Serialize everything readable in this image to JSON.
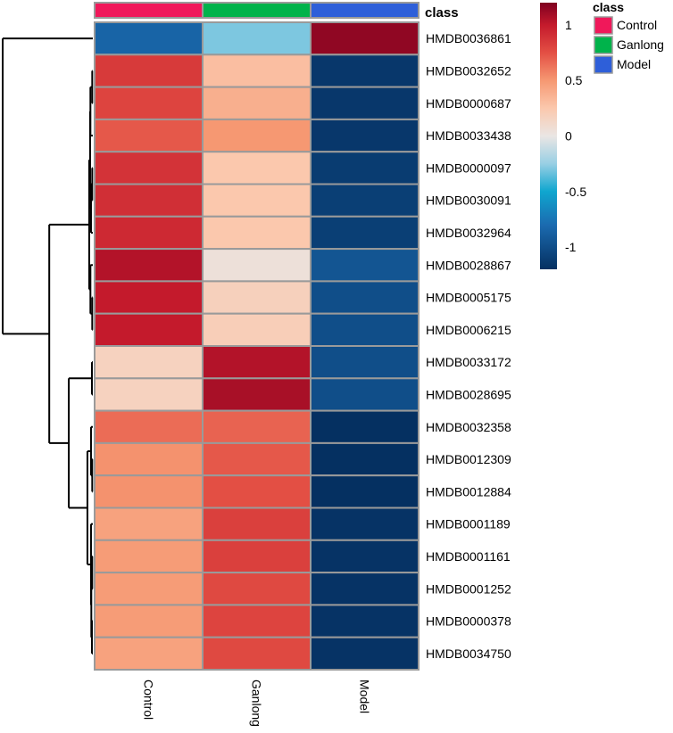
{
  "chart_data": {
    "type": "heatmap",
    "title": "",
    "columns": [
      "Control",
      "Ganlong",
      "Model"
    ],
    "rows": [
      "HMDB0036861",
      "HMDB0032652",
      "HMDB0000687",
      "HMDB0033438",
      "HMDB0000097",
      "HMDB0030091",
      "HMDB0032964",
      "HMDB0028867",
      "HMDB0005175",
      "HMDB0006215",
      "HMDB0033172",
      "HMDB0028695",
      "HMDB0032358",
      "HMDB0012309",
      "HMDB0012884",
      "HMDB0001189",
      "HMDB0001161",
      "HMDB0001252",
      "HMDB0000378",
      "HMDB0034750"
    ],
    "values": [
      [
        -0.85,
        -0.3,
        1.15
      ],
      [
        0.85,
        0.3,
        -1.15
      ],
      [
        0.8,
        0.38,
        -1.15
      ],
      [
        0.72,
        0.5,
        -1.15
      ],
      [
        0.88,
        0.25,
        -1.12
      ],
      [
        0.9,
        0.25,
        -1.1
      ],
      [
        0.93,
        0.25,
        -1.1
      ],
      [
        1.05,
        0.05,
        -0.95
      ],
      [
        1.0,
        0.18,
        -1.0
      ],
      [
        1.0,
        0.2,
        -1.0
      ],
      [
        0.17,
        1.05,
        -1.0
      ],
      [
        0.17,
        1.08,
        -1.0
      ],
      [
        0.65,
        0.68,
        -1.2
      ],
      [
        0.52,
        0.72,
        -1.2
      ],
      [
        0.52,
        0.75,
        -1.2
      ],
      [
        0.45,
        0.82,
        -1.18
      ],
      [
        0.48,
        0.82,
        -1.18
      ],
      [
        0.48,
        0.78,
        -1.18
      ],
      [
        0.48,
        0.8,
        -1.18
      ],
      [
        0.45,
        0.78,
        -1.18
      ]
    ],
    "column_class": [
      "Control",
      "Ganlong",
      "Model"
    ],
    "class_track_label": "class",
    "colorbar": {
      "min": -1.2,
      "max": 1.2,
      "ticks": [
        1,
        0.5,
        0,
        -0.5,
        -1
      ],
      "tick_labels": [
        "1",
        "0.5",
        "0",
        "-0.5",
        "-1"
      ],
      "stops": [
        {
          "value": -1.2,
          "color": "#053061"
        },
        {
          "value": -0.8,
          "color": "#1b6bb0"
        },
        {
          "value": -0.5,
          "color": "#0fa6cf"
        },
        {
          "value": -0.25,
          "color": "#98cfe4"
        },
        {
          "value": 0,
          "color": "#eae6e4"
        },
        {
          "value": 0.25,
          "color": "#fbc8ad"
        },
        {
          "value": 0.5,
          "color": "#f69872"
        },
        {
          "value": 0.75,
          "color": "#e34f44"
        },
        {
          "value": 1.0,
          "color": "#c41a2c"
        },
        {
          "value": 1.2,
          "color": "#7f0020"
        }
      ]
    },
    "legend": {
      "title": "class",
      "position": "top-right",
      "items": [
        {
          "label": "Control",
          "color": "#f0185a"
        },
        {
          "label": "Ganlong",
          "color": "#00b34b"
        },
        {
          "label": "Model",
          "color": "#2e5fd9"
        }
      ]
    },
    "row_dendrogram": {
      "merges": [
        [
          -2,
          -3
        ],
        [
          -5,
          -6
        ],
        [
          -9,
          -10
        ],
        [
          -14,
          -15
        ],
        [
          -17,
          -18
        ],
        [
          -11,
          -12
        ],
        [
          -19,
          -20
        ],
        [
          5,
          7
        ],
        [
          -16,
          8
        ],
        [
          -7,
          2
        ],
        [
          -4,
          1
        ],
        [
          -8,
          3
        ],
        [
          11,
          10
        ],
        [
          13,
          12
        ],
        [
          -13,
          4
        ],
        [
          15,
          9
        ],
        [
          6,
          16
        ],
        [
          14,
          17
        ],
        [
          -1,
          18
        ]
      ],
      "heights": [
        0.02,
        0.02,
        0.02,
        0.02,
        0.02,
        0.03,
        0.03,
        0.05,
        0.06,
        0.06,
        0.08,
        0.08,
        0.09,
        0.12,
        0.06,
        0.18,
        0.8,
        1.45,
        3.0
      ]
    }
  }
}
